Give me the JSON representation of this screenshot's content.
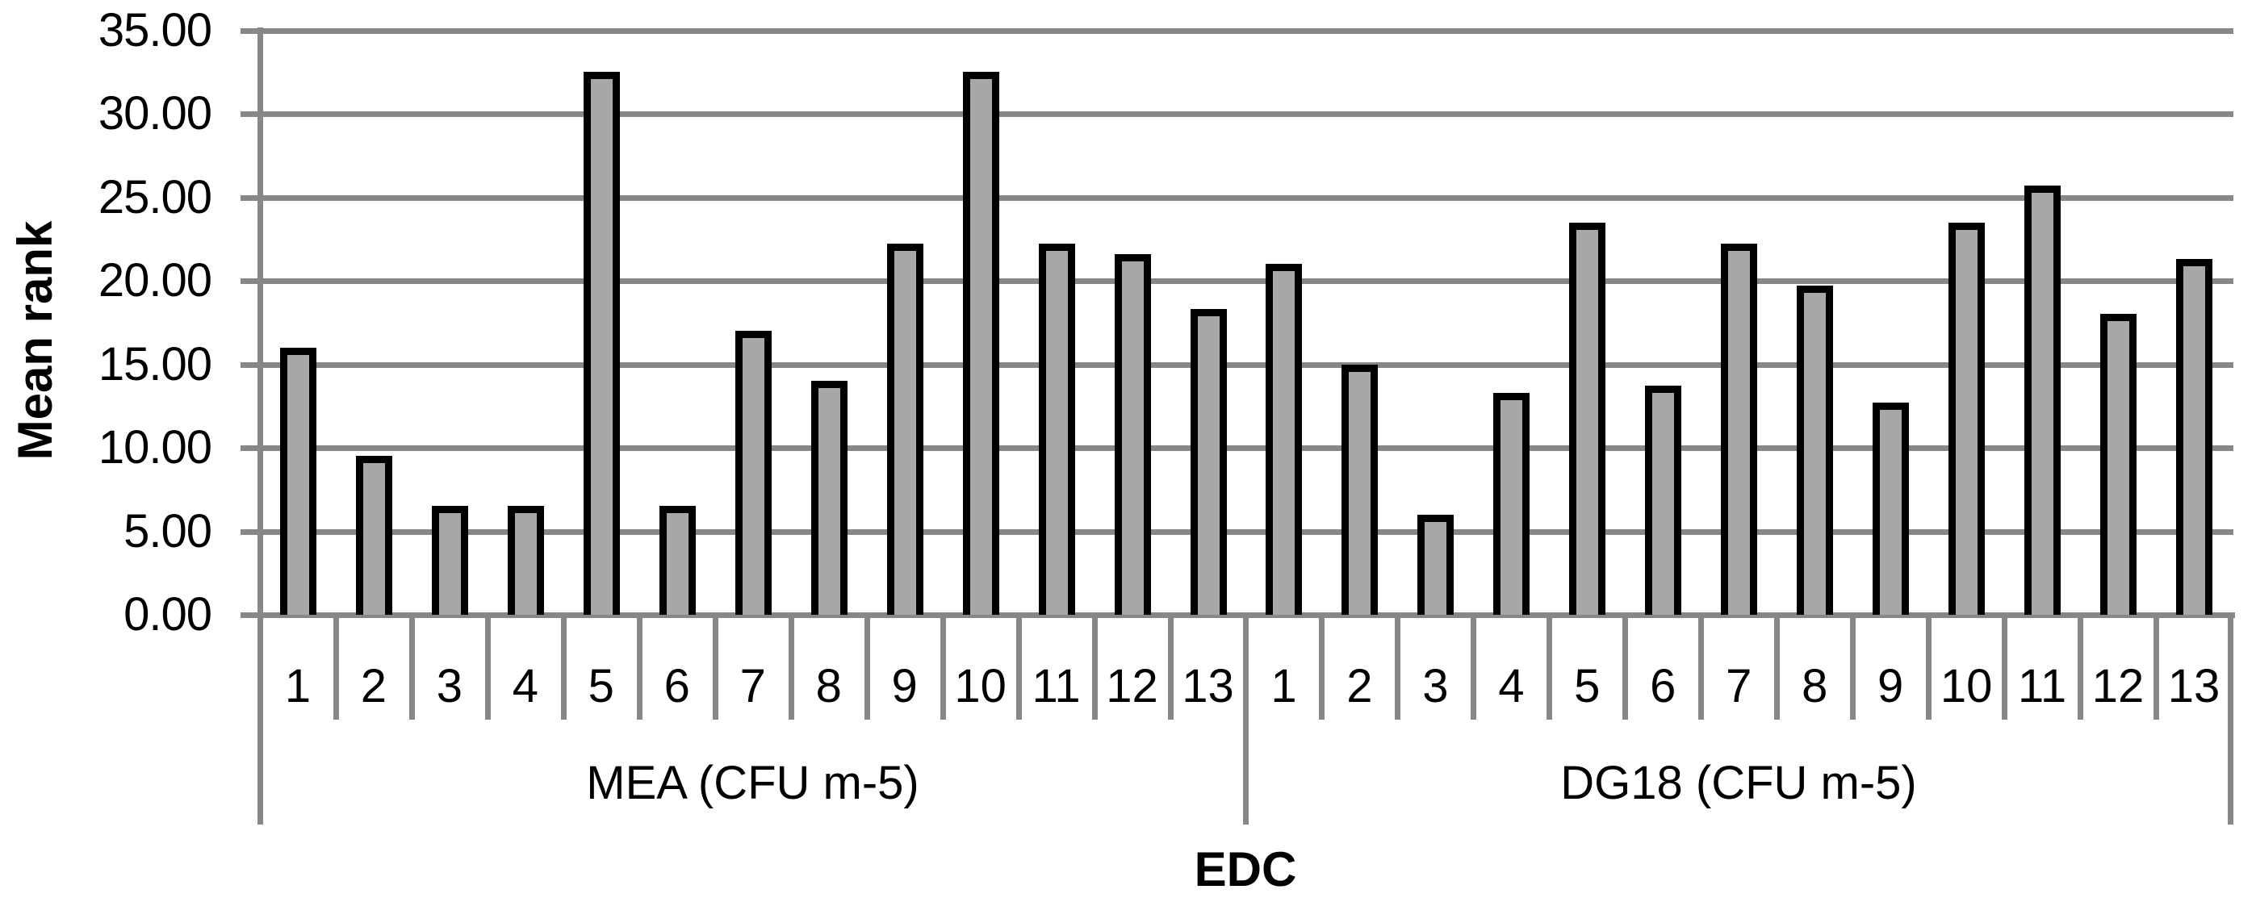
{
  "chart_data": {
    "type": "bar",
    "title": "",
    "ylabel": "Mean rank",
    "xlabel": "EDC",
    "ylim": [
      0,
      35
    ],
    "ytick_step": 5,
    "ytick_labels": [
      "35.00",
      "30.00",
      "25.00",
      "20.00",
      "15.00",
      "10.00",
      "5.00",
      "0.00"
    ],
    "grid": true,
    "legend_position": "none",
    "categories": [
      "1",
      "2",
      "3",
      "4",
      "5",
      "6",
      "7",
      "8",
      "9",
      "10",
      "11",
      "12",
      "13"
    ],
    "series": [
      {
        "name": "MEA (CFU m-5)",
        "values": [
          16.0,
          9.5,
          6.5,
          6.5,
          32.5,
          6.5,
          17.0,
          14.0,
          22.2,
          32.5,
          22.2,
          21.6,
          18.3
        ]
      },
      {
        "name": "DG18 (CFU m-5)",
        "values": [
          21.0,
          15.0,
          6.0,
          13.3,
          23.5,
          13.7,
          22.2,
          19.7,
          12.7,
          23.5,
          25.7,
          18.0,
          21.3
        ]
      }
    ],
    "colors": {
      "bar_fill": "#a7a7a7",
      "bar_border": "#000000",
      "grid_line": "#878787",
      "text": "#000000",
      "background": "#ffffff"
    }
  }
}
